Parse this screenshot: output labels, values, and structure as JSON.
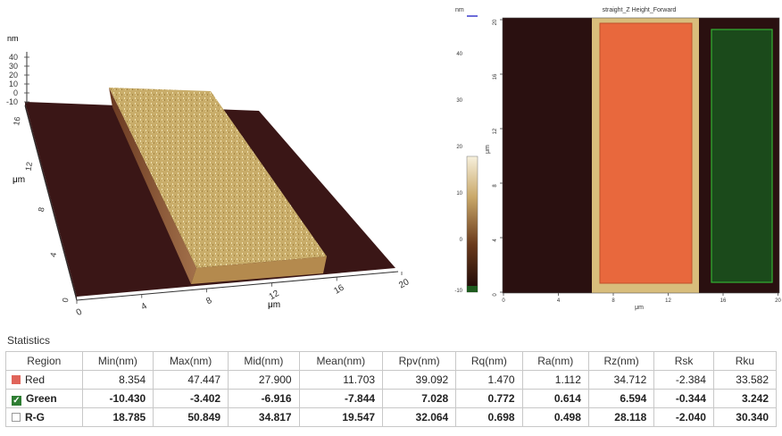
{
  "view3d": {
    "z_unit": "nm",
    "z_ticks": [
      "40",
      "30",
      "20",
      "10",
      "0",
      "-10"
    ],
    "y_unit": "μm",
    "y_ticks": [
      "16",
      "12",
      "8",
      "4",
      "0"
    ],
    "x_unit": "μm",
    "x_ticks": [
      "0",
      "4",
      "8",
      "12",
      "16",
      "20"
    ]
  },
  "view2d": {
    "title": "straight_Z Height_Forward",
    "colorbar_unit": "nm",
    "colorbar_ticks": [
      "40",
      "30",
      "20",
      "10",
      "0",
      "-10"
    ],
    "y_unit": "μm",
    "y_ticks": [
      "20",
      "16",
      "12",
      "8",
      "4",
      "0"
    ],
    "x_unit": "μm",
    "x_ticks": [
      "0",
      "4",
      "8",
      "12",
      "16",
      "20"
    ],
    "colors": {
      "red_region": "#e8683d",
      "green_region": "#1b4a1b",
      "stripe": "#d8bd7c",
      "substrate": "#2a1010"
    }
  },
  "statistics": {
    "title": "Statistics",
    "columns": [
      "Region",
      "Min(nm)",
      "Max(nm)",
      "Mid(nm)",
      "Mean(nm)",
      "Rpv(nm)",
      "Rq(nm)",
      "Ra(nm)",
      "Rz(nm)",
      "Rsk",
      "Rku"
    ],
    "rows": [
      {
        "region": "Red",
        "bold": false,
        "marker": "red-swatch",
        "values": [
          "8.354",
          "47.447",
          "27.900",
          "11.703",
          "39.092",
          "1.470",
          "1.112",
          "34.712",
          "-2.384",
          "33.582"
        ]
      },
      {
        "region": "Green",
        "bold": true,
        "marker": "checkbox-checked",
        "values": [
          "-10.430",
          "-3.402",
          "-6.916",
          "-7.844",
          "7.028",
          "0.772",
          "0.614",
          "6.594",
          "-0.344",
          "3.242"
        ]
      },
      {
        "region": "R-G",
        "bold": true,
        "marker": "white-swatch",
        "values": [
          "18.785",
          "50.849",
          "34.817",
          "19.547",
          "32.064",
          "0.698",
          "0.498",
          "28.118",
          "-2.040",
          "30.340"
        ]
      }
    ]
  }
}
